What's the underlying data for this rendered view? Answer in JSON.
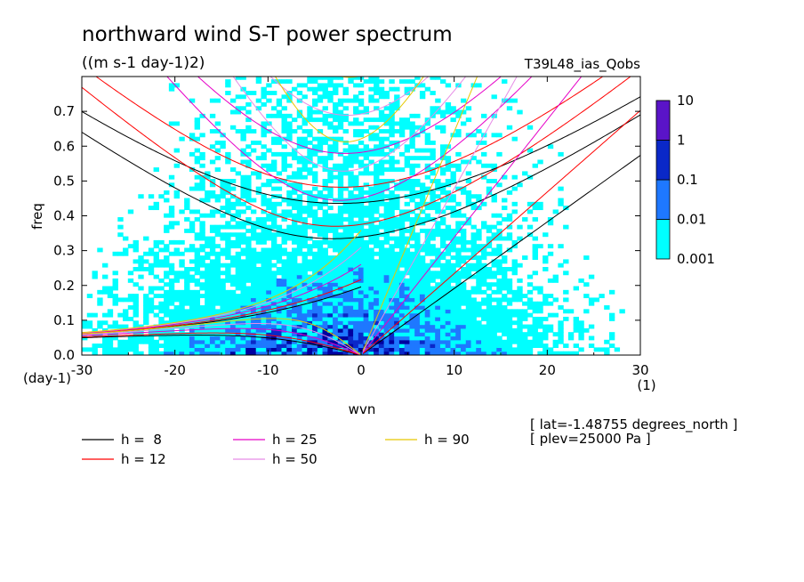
{
  "chart_data": {
    "type": "heatmap",
    "title": "northward wind S-T power spectrum",
    "subtitle": "((m s-1 day-1)2)",
    "experiment": "T39L48_ias_Qobs",
    "xlabel": "wvn",
    "x_unit": "(1)",
    "ylabel": "freq",
    "y_unit": "(day-1)",
    "xlim": [
      -30,
      30
    ],
    "ylim": [
      0,
      0.8
    ],
    "x_ticks": [
      -30,
      -20,
      -10,
      0,
      10,
      20,
      30
    ],
    "x_tick_labels": [
      "-30",
      "-20",
      "-10",
      "0",
      "10",
      "20",
      "30"
    ],
    "y_ticks": [
      0,
      0.1,
      0.2,
      0.3,
      0.4,
      0.5,
      0.6,
      0.7
    ],
    "y_tick_labels": [
      "0.0",
      "0.1",
      "0.2",
      "0.3",
      "0.4",
      "0.5",
      "0.6",
      "0.7"
    ],
    "colorbar": {
      "levels": [
        "0.001",
        "0.01",
        "0.1",
        "1",
        "10"
      ],
      "colors": [
        "#00ffff",
        "#1e78ff",
        "#0a28c8",
        "#0000a0",
        "#5a14c8"
      ]
    },
    "legend": [
      {
        "label": "h =  8",
        "color": "#000000",
        "h": 8
      },
      {
        "label": "h = 12",
        "color": "#ff0000",
        "h": 12
      },
      {
        "label": "h = 25",
        "color": "#e600c8",
        "h": 25
      },
      {
        "label": "h = 50",
        "color": "#e68ce6",
        "h": 50
      },
      {
        "label": "h = 90",
        "color": "#e6c800",
        "h": 90
      }
    ],
    "notes": [
      "[ lat=-1.48755 degrees_north ]",
      "[ plev=25000 Pa ]"
    ]
  }
}
